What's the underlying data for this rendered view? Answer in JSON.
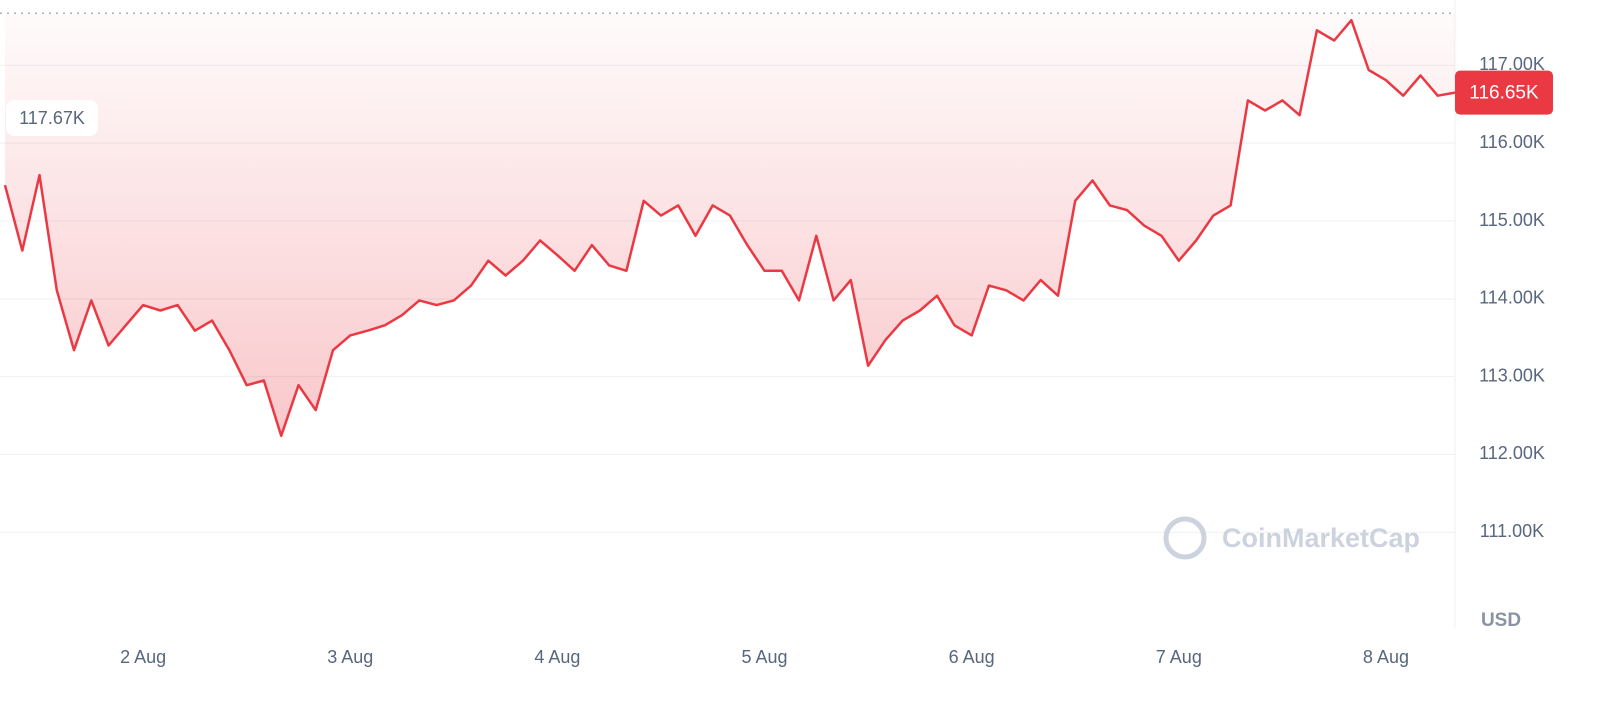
{
  "chart_data": {
    "type": "line",
    "color": "#ea3943",
    "values": [
      115460,
      114620,
      115590,
      114110,
      113340,
      113980,
      113400,
      113660,
      113920,
      113850,
      113920,
      113590,
      113720,
      113340,
      112890,
      112950,
      112240,
      112890,
      112570,
      113340,
      113530,
      113590,
      113660,
      113790,
      113980,
      113920,
      113980,
      114170,
      114490,
      114300,
      114490,
      114750,
      114560,
      114360,
      114690,
      114430,
      114360,
      115260,
      115070,
      115200,
      114810,
      115200,
      115070,
      114690,
      114360,
      114360,
      113980,
      114810,
      113980,
      114240,
      113140,
      113470,
      113720,
      113850,
      114040,
      113660,
      113530,
      114170,
      114110,
      113980,
      114240,
      114040,
      115260,
      115520,
      115200,
      115140,
      114940,
      114810,
      114490,
      114750,
      115070,
      115200,
      116550,
      116420,
      116550,
      116360,
      117450,
      117320,
      117580,
      116940,
      116810,
      116610,
      116870,
      116610,
      116650
    ],
    "xlim": [
      0,
      84
    ],
    "xticks": [
      {
        "value": 8,
        "label": "2 Aug"
      },
      {
        "value": 20,
        "label": "3 Aug"
      },
      {
        "value": 32,
        "label": "4 Aug"
      },
      {
        "value": 44,
        "label": "5 Aug"
      },
      {
        "value": 56,
        "label": "6 Aug"
      },
      {
        "value": 68,
        "label": "7 Aug"
      },
      {
        "value": 80,
        "label": "8 Aug"
      }
    ],
    "ylim": [
      109770,
      117840
    ],
    "yticks": [
      {
        "value": 111000,
        "label": "111.00K"
      },
      {
        "value": 112000,
        "label": "112.00K"
      },
      {
        "value": 113000,
        "label": "113.00K"
      },
      {
        "value": 114000,
        "label": "114.00K"
      },
      {
        "value": 115000,
        "label": "115.00K"
      },
      {
        "value": 116000,
        "label": "116.00K"
      },
      {
        "value": 117000,
        "label": "117.00K"
      }
    ],
    "grid": true,
    "high": {
      "value": 117670,
      "label": "117.67K"
    },
    "last_price": {
      "value": 116650,
      "label": "116.65K"
    },
    "currency": "USD",
    "watermark": "CoinMarketCap"
  }
}
